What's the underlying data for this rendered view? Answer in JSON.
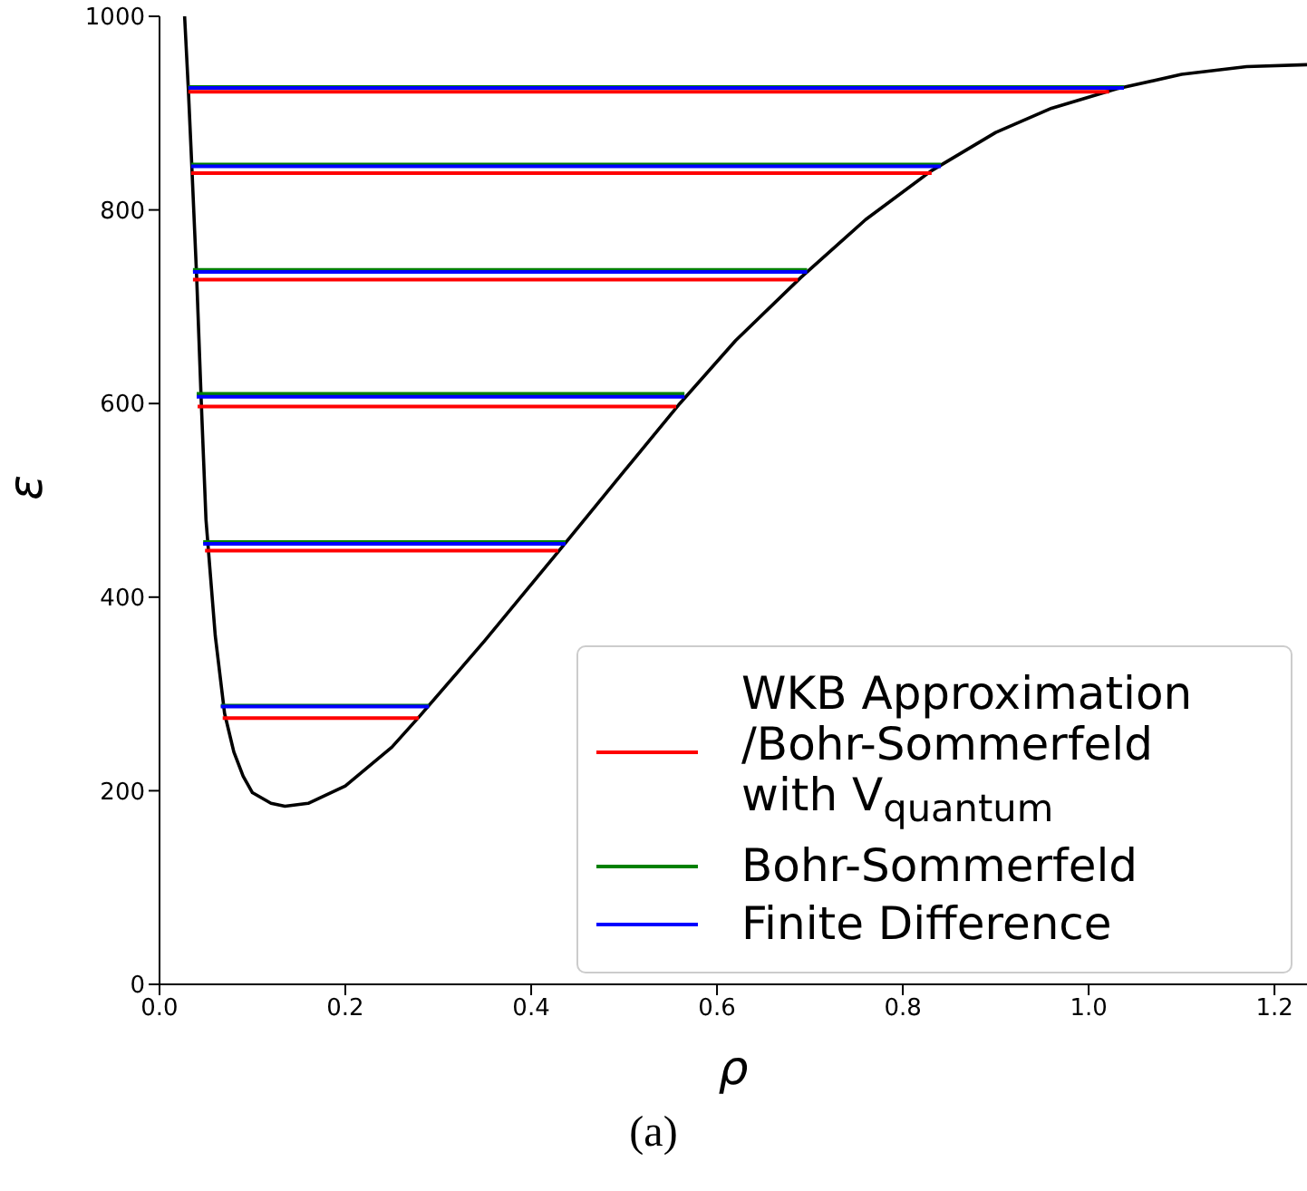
{
  "chart_data": {
    "type": "line",
    "xlabel": "ρ",
    "ylabel": "ε",
    "annotations": [
      "(a)"
    ],
    "xlim": [
      0,
      1.235
    ],
    "ylim": [
      0,
      1000
    ],
    "xticks": [
      {
        "value": 0,
        "label": "0.0"
      },
      0.2,
      0.4,
      0.6,
      0.8,
      {
        "value": 1,
        "label": "1.0"
      },
      1.2
    ],
    "yticks": [
      0,
      200,
      400,
      600,
      800,
      1000
    ],
    "legend": "bottom right",
    "series": [
      {
        "color": "#000000",
        "x": [
          0.027,
          0.031,
          0.035,
          0.04,
          0.045,
          0.05,
          0.06,
          0.07,
          0.08,
          0.09,
          0.1,
          0.12,
          0.135,
          0.16,
          0.2,
          0.25,
          0.28,
          0.35,
          0.43,
          0.5,
          0.56,
          0.62,
          0.69,
          0.76,
          0.83,
          0.9,
          0.96,
          1.03,
          1.1,
          1.17,
          1.235
        ],
        "values": [
          1000,
          925,
          840,
          730,
          600,
          480,
          360,
          280,
          240,
          215,
          198,
          187,
          184,
          187,
          205,
          245,
          277,
          355,
          448,
          530,
          600,
          665,
          730,
          790,
          840,
          880,
          905,
          925,
          940,
          948,
          950
        ]
      },
      {
        "name": "WKB Approximation /Bohr-Sommerfeld with V$_{quantum}$",
        "color": "#ff0000",
        "x": [
          0.068,
          0.279
        ],
        "values": [
          275,
          275
        ]
      },
      {
        "color": "#ff0000",
        "x": [
          0.049,
          0.429
        ],
        "values": [
          448,
          448
        ]
      },
      {
        "color": "#ff0000",
        "x": [
          0.041,
          0.556
        ],
        "values": [
          597,
          597
        ]
      },
      {
        "color": "#ff0000",
        "x": [
          0.036,
          0.687
        ],
        "values": [
          728,
          728
        ]
      },
      {
        "color": "#ff0000",
        "x": [
          0.034,
          0.831
        ],
        "values": [
          838,
          838
        ]
      },
      {
        "color": "#ff0000",
        "x": [
          0.031,
          1.022
        ],
        "values": [
          922,
          922
        ]
      },
      {
        "name": "Bohr-Sommerfeld",
        "color": "#008000",
        "x": [
          0.066,
          0.29
        ],
        "values": [
          288,
          288
        ]
      },
      {
        "color": "#008000",
        "x": [
          0.047,
          0.437
        ],
        "values": [
          457,
          457
        ]
      },
      {
        "color": "#008000",
        "x": [
          0.04,
          0.565
        ],
        "values": [
          610,
          610
        ]
      },
      {
        "color": "#008000",
        "x": [
          0.036,
          0.697
        ],
        "values": [
          738,
          738
        ]
      },
      {
        "color": "#008000",
        "x": [
          0.034,
          0.841
        ],
        "values": [
          847,
          847
        ]
      },
      {
        "color": "#008000",
        "x": [
          0.031,
          1.038
        ],
        "values": [
          927,
          927
        ]
      },
      {
        "name": "Finite Difference",
        "color": "#0000ff",
        "x": [
          0.066,
          0.29
        ],
        "values": [
          287,
          287
        ]
      },
      {
        "color": "#0000ff",
        "x": [
          0.047,
          0.437
        ],
        "values": [
          455,
          455
        ]
      },
      {
        "color": "#0000ff",
        "x": [
          0.04,
          0.565
        ],
        "values": [
          607,
          607
        ]
      },
      {
        "color": "#0000ff",
        "x": [
          0.036,
          0.697
        ],
        "values": [
          736,
          736
        ]
      },
      {
        "color": "#0000ff",
        "x": [
          0.034,
          0.841
        ],
        "values": [
          845,
          845
        ]
      },
      {
        "color": "#0000ff",
        "x": [
          0.031,
          1.038
        ],
        "values": [
          926,
          926
        ]
      }
    ]
  }
}
